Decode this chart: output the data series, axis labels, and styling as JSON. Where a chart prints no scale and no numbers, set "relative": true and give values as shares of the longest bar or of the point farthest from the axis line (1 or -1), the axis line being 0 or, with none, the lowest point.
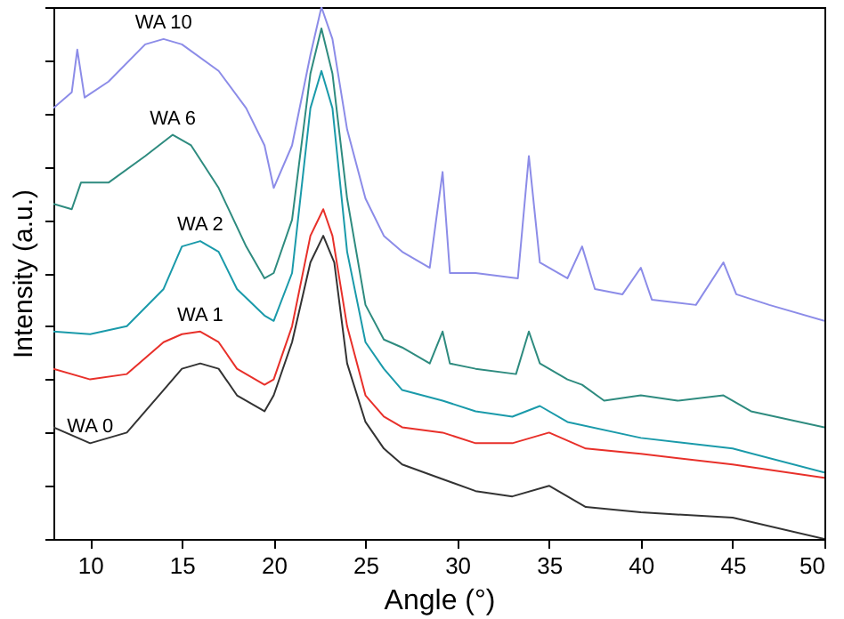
{
  "chart_data": {
    "type": "line",
    "xlabel": "Angle (°)",
    "ylabel": "Intensity (a.u.)",
    "relative": true,
    "tick_labels": "x",
    "grid": false,
    "legend": false,
    "marker": "none",
    "line_style": "solid",
    "xlim": [
      8,
      50
    ],
    "xticks": [
      10,
      15,
      20,
      25,
      30,
      35,
      40,
      45,
      50
    ],
    "series": [
      {
        "name": "WA 10",
        "color": "#8c8ce8",
        "x": [
          8,
          9,
          9.3,
          9.7,
          11,
          13,
          14,
          15,
          17,
          18.5,
          19.5,
          20,
          21,
          22,
          22.6,
          23.2,
          24,
          25,
          26,
          27,
          28.5,
          29.2,
          29.6,
          31,
          33.3,
          33.9,
          34.5,
          36,
          36.8,
          37.5,
          39,
          40,
          40.6,
          43,
          44.5,
          45.2,
          47,
          50
        ],
        "values": [
          0.81,
          0.84,
          0.92,
          0.83,
          0.86,
          0.93,
          0.94,
          0.93,
          0.88,
          0.81,
          0.74,
          0.66,
          0.74,
          0.91,
          1.0,
          0.94,
          0.77,
          0.64,
          0.57,
          0.54,
          0.51,
          0.69,
          0.5,
          0.5,
          0.49,
          0.72,
          0.52,
          0.49,
          0.55,
          0.47,
          0.46,
          0.51,
          0.45,
          0.44,
          0.52,
          0.46,
          0.44,
          0.41
        ]
      },
      {
        "name": "WA 6",
        "color": "#2e8b7f",
        "x": [
          8,
          9,
          9.5,
          11,
          13,
          14.5,
          15.5,
          17,
          18.5,
          19.5,
          20,
          21,
          22,
          22.6,
          23.2,
          24,
          25,
          26,
          27,
          28.5,
          29.2,
          29.6,
          31,
          33.2,
          33.9,
          34.5,
          36,
          36.8,
          38,
          40,
          42,
          44.5,
          46,
          50
        ],
        "values": [
          0.63,
          0.62,
          0.67,
          0.67,
          0.72,
          0.76,
          0.74,
          0.66,
          0.55,
          0.49,
          0.5,
          0.6,
          0.875,
          0.96,
          0.875,
          0.64,
          0.44,
          0.375,
          0.36,
          0.33,
          0.39,
          0.33,
          0.32,
          0.31,
          0.39,
          0.33,
          0.3,
          0.29,
          0.26,
          0.27,
          0.26,
          0.27,
          0.24,
          0.21
        ]
      },
      {
        "name": "WA 2",
        "color": "#1a9aaa",
        "x": [
          8,
          10,
          12,
          14,
          15,
          16,
          17,
          18,
          19.5,
          20,
          21,
          22,
          22.6,
          23.2,
          24,
          25,
          26,
          27,
          29.2,
          31,
          33,
          34.5,
          36,
          40,
          45,
          50
        ],
        "values": [
          0.39,
          0.385,
          0.4,
          0.47,
          0.55,
          0.56,
          0.54,
          0.47,
          0.42,
          0.41,
          0.5,
          0.81,
          0.88,
          0.81,
          0.54,
          0.37,
          0.32,
          0.28,
          0.26,
          0.24,
          0.23,
          0.25,
          0.22,
          0.19,
          0.17,
          0.125
        ]
      },
      {
        "name": "WA 1",
        "color": "#e8302a",
        "x": [
          8,
          10,
          12,
          14,
          15,
          16,
          17,
          18,
          19.5,
          20,
          21,
          22,
          22.7,
          23.2,
          24,
          25,
          26,
          27,
          29.2,
          31,
          33,
          35,
          37,
          40,
          45,
          50
        ],
        "values": [
          0.32,
          0.3,
          0.31,
          0.37,
          0.385,
          0.39,
          0.37,
          0.32,
          0.29,
          0.3,
          0.4,
          0.57,
          0.62,
          0.57,
          0.4,
          0.27,
          0.23,
          0.21,
          0.2,
          0.18,
          0.18,
          0.2,
          0.17,
          0.16,
          0.14,
          0.115
        ]
      },
      {
        "name": "WA 0",
        "color": "#333333",
        "x": [
          8,
          10,
          12,
          14,
          15,
          16,
          17,
          18,
          19.5,
          20,
          21,
          22,
          22.7,
          23.3,
          24,
          25,
          26,
          27,
          29,
          31,
          33,
          35,
          37,
          40,
          45,
          50
        ],
        "values": [
          0.21,
          0.18,
          0.2,
          0.28,
          0.32,
          0.33,
          0.32,
          0.27,
          0.24,
          0.27,
          0.37,
          0.52,
          0.57,
          0.52,
          0.33,
          0.22,
          0.17,
          0.14,
          0.115,
          0.09,
          0.08,
          0.1,
          0.06,
          0.05,
          0.04,
          0.0
        ]
      }
    ]
  }
}
